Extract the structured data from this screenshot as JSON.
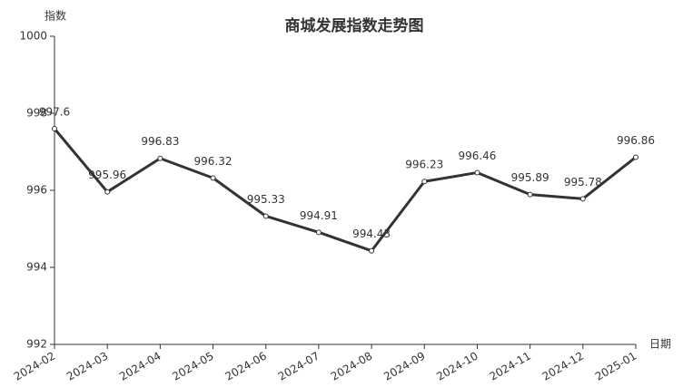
{
  "chart_data": {
    "type": "line",
    "title": "商城发展指数走势图",
    "y_label": "指数",
    "x_label": "日期",
    "categories": [
      "2024-02",
      "2024-03",
      "2024-04",
      "2024-05",
      "2024-06",
      "2024-07",
      "2024-08",
      "2024-09",
      "2024-10",
      "2024-11",
      "2024-12",
      "2025-01"
    ],
    "values": [
      997.6,
      995.96,
      996.83,
      996.32,
      995.33,
      994.91,
      994.43,
      996.23,
      996.46,
      995.89,
      995.78,
      996.86
    ],
    "color": "#333333",
    "ylim": [
      992,
      1000
    ],
    "yticks": [
      992,
      994,
      996,
      998,
      1000
    ],
    "grid": false
  }
}
